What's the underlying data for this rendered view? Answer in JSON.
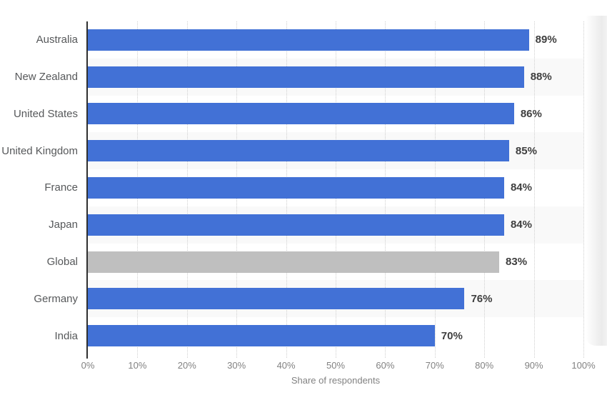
{
  "chart_data": {
    "type": "bar",
    "orientation": "horizontal",
    "title": "",
    "xlabel": "Share of respondents",
    "ylabel": "",
    "categories": [
      "Australia",
      "New Zealand",
      "United States",
      "United Kingdom",
      "France",
      "Japan",
      "Global",
      "Germany",
      "India"
    ],
    "values": [
      89,
      88,
      86,
      85,
      84,
      84,
      83,
      76,
      70
    ],
    "value_labels": [
      "89%",
      "88%",
      "86%",
      "85%",
      "84%",
      "84%",
      "83%",
      "76%",
      "70%"
    ],
    "highlight_category": "Global",
    "xlim": [
      0,
      100
    ],
    "x_ticks": [
      "0%",
      "10%",
      "20%",
      "30%",
      "40%",
      "50%",
      "60%",
      "70%",
      "80%",
      "90%",
      "100%"
    ],
    "grid": "vertical-dotted",
    "legend": "none",
    "row_striping": "alternate"
  },
  "colors": {
    "bar_primary": "#4271d6",
    "bar_highlight": "#bfbfbf",
    "row_stripe": "#f9f9f9",
    "gridline": "#cfcfcf",
    "axis_line": "#2f2f2f",
    "category_label": "#56585a",
    "value_label": "#3f3f3f",
    "tick_label": "#828282",
    "background": "#ffffff"
  }
}
